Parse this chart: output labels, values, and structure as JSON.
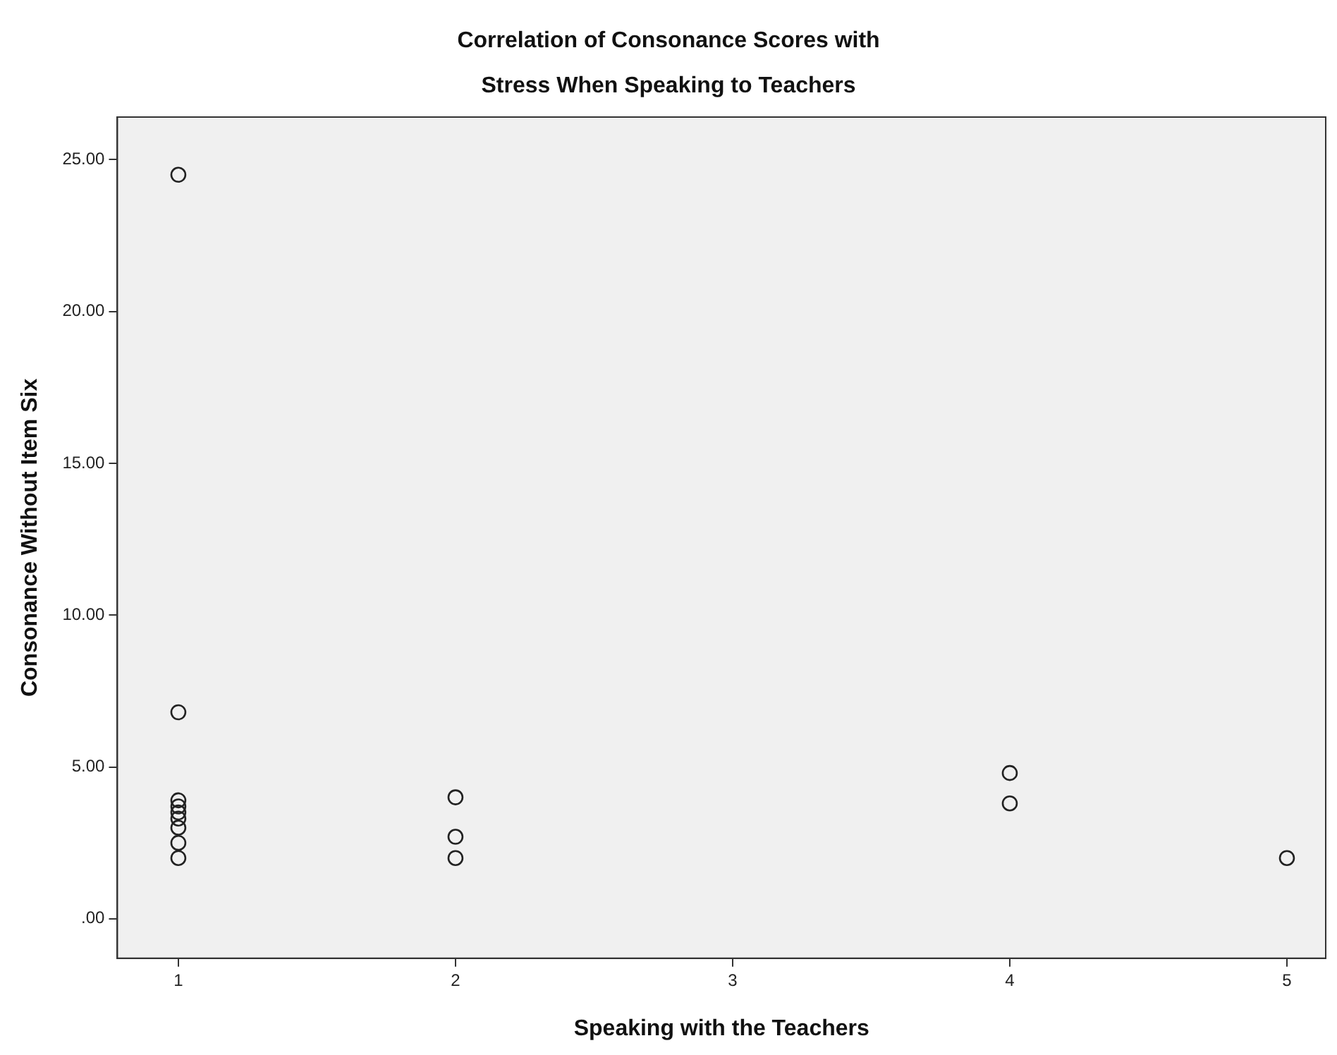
{
  "chart_data": {
    "type": "scatter",
    "title": [
      "Correlation of Consonance Scores with",
      "Stress When Speaking to Teachers"
    ],
    "xlabel": "Speaking with the Teachers",
    "ylabel": "Consonance Without Item Six",
    "series": [
      {
        "color": "#222222",
        "x": [
          1,
          1,
          1,
          1,
          1,
          1,
          1,
          1,
          1,
          2,
          2,
          2,
          4,
          4,
          5
        ],
        "values": [
          24.5,
          6.8,
          3.9,
          3.7,
          3.5,
          3.3,
          3.0,
          2.5,
          2.0,
          4.0,
          2.7,
          2.0,
          4.8,
          3.8,
          2.0
        ]
      }
    ],
    "xlim": [
      0.78,
      5.14
    ],
    "xticks": [
      1,
      2,
      3,
      4,
      5
    ],
    "ylim": [
      -1.3,
      26.4
    ],
    "yticks": [
      {
        "value": 0,
        "label": ".00"
      },
      {
        "value": 5,
        "label": "5.00"
      },
      {
        "value": 10,
        "label": "10.00"
      },
      {
        "value": 15,
        "label": "15.00"
      },
      {
        "value": 20,
        "label": "20.00"
      },
      {
        "value": 25,
        "label": "25.00"
      }
    ],
    "grid": false,
    "legend": false,
    "marker": "circle"
  }
}
